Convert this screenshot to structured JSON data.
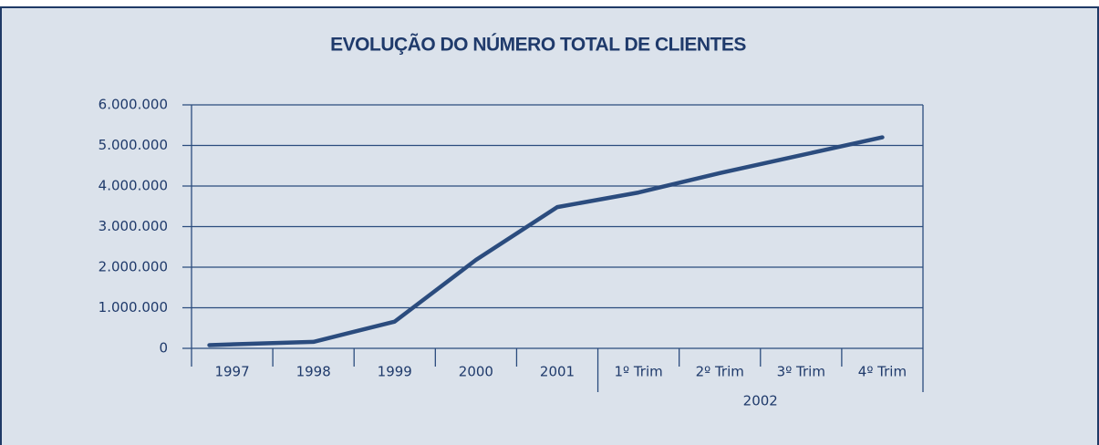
{
  "chart_data": {
    "type": "line",
    "title": "EVOLUÇÃO DO NÚMERO TOTAL DE CLIENTES",
    "categories": [
      "1997",
      "1998",
      "1999",
      "2000",
      "2001",
      "1º Trim",
      "2º Trim",
      "3º Trim",
      "4º Trim"
    ],
    "category_groups": [
      {
        "label": "2002",
        "from": 5,
        "to": 8
      }
    ],
    "series": [
      {
        "name": "Clientes",
        "color": "#2b4c7e",
        "values": [
          80000,
          160000,
          660000,
          2180000,
          3480000,
          3840000,
          4320000,
          4760000,
          5200000
        ]
      }
    ],
    "ylim": [
      0,
      6000000
    ],
    "yticks": [
      0,
      {
        "value": 1000000,
        "label": "1.000.000"
      },
      {
        "value": 2000000,
        "label": "2.000.000"
      },
      {
        "value": 3000000,
        "label": "3.000.000"
      },
      {
        "value": 4000000,
        "label": "4.000.000"
      },
      {
        "value": 5000000,
        "label": "5.000.000"
      },
      {
        "value": 6000000,
        "label": "6.000.000"
      }
    ],
    "grid": true
  }
}
